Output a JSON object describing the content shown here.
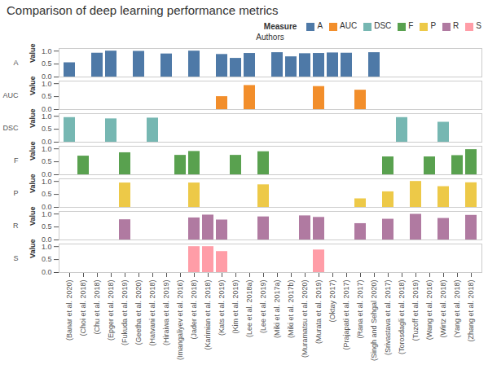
{
  "chart_data": {
    "type": "bar",
    "title": "Comparison of deep learning performance metrics",
    "x_label": "Authors",
    "y_label": "Value",
    "legend_title": "Measure",
    "legend": "top-right",
    "grid": false,
    "categories": [
      "(Banar et al. 2020)",
      "(Choi et al. 2018)",
      "(Chu et al. 2018)",
      "(Epger et al. 2018)",
      "(Fukuda et al. 2019)",
      "(Geetha et al. 2020)",
      "(Hatvani et al. 2018)",
      "(Hiraiwa et al. 2019)",
      "(Imangaliyev et al. 2016)",
      "(Jader et al. 2018)",
      "(Karimian et al. 2018)",
      "(Kats et al. 2019)",
      "(Kim et al. 2019)",
      "(Lee et al. 2018a)",
      "(Lee et al. 2019)",
      "(Miki et al. 2017a)",
      "(Miki et al. 2017b)",
      "(Muramatsu et al. 2020)",
      "(Murata et al. 2019)",
      "(Oktay 2017)",
      "(Prajapati et al. 2017)",
      "(Rana et al. 2017)",
      "(Singh and Sehgal 2020)",
      "(Srivastava et al. 2017)",
      "(Torosdagli et al. 2018)",
      "(Tuzoff et al. 2019)",
      "(Wang et al. 2016)",
      "(Wirtz et al. 2018)",
      "(Yang et al. 2018)",
      "(Zhang et al. 2018)"
    ],
    "series": [
      {
        "name": "A",
        "color": "#4e79a7",
        "values": [
          0.55,
          null,
          0.92,
          1.0,
          null,
          0.99,
          null,
          0.89,
          null,
          1.0,
          null,
          0.87,
          0.72,
          0.91,
          null,
          0.94,
          0.78,
          0.9,
          0.91,
          0.93,
          0.92,
          null,
          0.94,
          null,
          null,
          null,
          null,
          null,
          null,
          null
        ]
      },
      {
        "name": "AUC",
        "color": "#f28e2b",
        "values": [
          null,
          null,
          null,
          null,
          null,
          null,
          null,
          null,
          null,
          null,
          null,
          0.5,
          null,
          0.93,
          null,
          null,
          null,
          null,
          0.89,
          null,
          null,
          0.75,
          null,
          null,
          null,
          null,
          null,
          null,
          null,
          null
        ]
      },
      {
        "name": "DSC",
        "color": "#76b7b2",
        "values": [
          0.95,
          null,
          null,
          0.9,
          null,
          null,
          0.93,
          null,
          null,
          null,
          null,
          null,
          null,
          null,
          null,
          null,
          null,
          null,
          null,
          null,
          null,
          null,
          null,
          null,
          0.95,
          null,
          null,
          0.77,
          null,
          null
        ]
      },
      {
        "name": "F",
        "color": "#59a14f",
        "values": [
          null,
          0.72,
          null,
          null,
          0.85,
          null,
          null,
          null,
          0.75,
          0.9,
          null,
          null,
          0.75,
          null,
          0.89,
          null,
          null,
          null,
          null,
          null,
          null,
          null,
          null,
          0.69,
          null,
          null,
          0.69,
          null,
          0.74,
          0.97
        ]
      },
      {
        "name": "P",
        "color": "#edc948",
        "values": [
          null,
          null,
          null,
          null,
          0.94,
          null,
          null,
          null,
          null,
          0.94,
          null,
          null,
          null,
          null,
          0.87,
          null,
          null,
          null,
          null,
          null,
          null,
          0.33,
          null,
          0.6,
          null,
          1.0,
          null,
          0.8,
          null,
          0.95
        ]
      },
      {
        "name": "R",
        "color": "#b07aa1",
        "values": [
          null,
          null,
          null,
          null,
          0.78,
          null,
          null,
          null,
          null,
          0.85,
          0.96,
          0.77,
          null,
          null,
          0.89,
          null,
          null,
          0.93,
          0.87,
          null,
          null,
          0.63,
          null,
          0.8,
          null,
          0.99,
          null,
          0.83,
          null,
          0.95
        ]
      },
      {
        "name": "S",
        "color": "#ff9da7",
        "values": [
          null,
          null,
          null,
          null,
          null,
          null,
          null,
          null,
          null,
          1.0,
          1.0,
          0.81,
          null,
          null,
          null,
          null,
          null,
          null,
          0.87,
          null,
          null,
          null,
          null,
          null,
          null,
          null,
          null,
          null,
          null,
          null
        ]
      }
    ],
    "ylim": [
      0,
      1.1
    ],
    "yticks": [
      {
        "value": 0,
        "label": "0.0"
      },
      {
        "value": 0.5,
        "label": "0.5"
      },
      {
        "value": 1,
        "label": "1.0"
      }
    ]
  }
}
